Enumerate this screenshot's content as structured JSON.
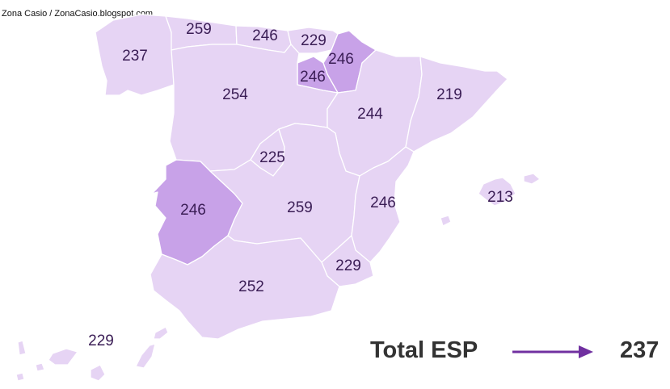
{
  "credit": "Zona Casio / ZonaCasio.blogspot.com",
  "colors": {
    "base": "#e6d4f4",
    "highlight": "#c8a2e8",
    "border": "#ffffff",
    "arrow": "#7030a0",
    "text": "#3a1d55"
  },
  "regions": [
    {
      "id": "galicia",
      "value": "237",
      "highlight": false
    },
    {
      "id": "asturias",
      "value": "259",
      "highlight": false
    },
    {
      "id": "cantabria",
      "value": "246",
      "highlight": false
    },
    {
      "id": "pais-vasco",
      "value": "229",
      "highlight": false
    },
    {
      "id": "navarra",
      "value": "246",
      "highlight": true
    },
    {
      "id": "la-rioja",
      "value": "246",
      "highlight": true
    },
    {
      "id": "castilla-leon",
      "value": "254",
      "highlight": false
    },
    {
      "id": "aragon",
      "value": "244",
      "highlight": false
    },
    {
      "id": "cataluna",
      "value": "219",
      "highlight": false
    },
    {
      "id": "madrid",
      "value": "225",
      "highlight": false
    },
    {
      "id": "extremadura",
      "value": "246",
      "highlight": true
    },
    {
      "id": "castilla-mancha",
      "value": "259",
      "highlight": false
    },
    {
      "id": "valencia",
      "value": "246",
      "highlight": false
    },
    {
      "id": "baleares",
      "value": "213",
      "highlight": false
    },
    {
      "id": "murcia",
      "value": "229",
      "highlight": false
    },
    {
      "id": "andalucia",
      "value": "252",
      "highlight": false
    },
    {
      "id": "canarias",
      "value": "229",
      "highlight": false
    }
  ],
  "total": {
    "label": "Total ESP",
    "value": "237"
  }
}
